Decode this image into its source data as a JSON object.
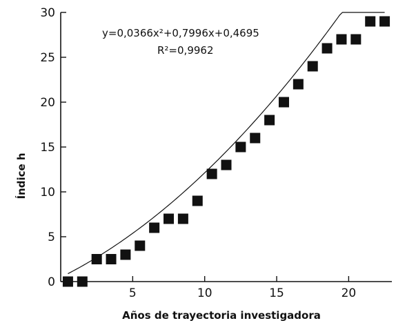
{
  "chart_data": {
    "type": "scatter",
    "xlabel": "Años de trayectoria investigadora",
    "ylabel": "Índice h",
    "xlim": [
      0,
      23
    ],
    "ylim": [
      0,
      30
    ],
    "xticks": [
      5,
      10,
      15,
      20
    ],
    "yticks": [
      0,
      5,
      10,
      15,
      20,
      25,
      30
    ],
    "series": [
      {
        "x": [
          0.5,
          1.5,
          2.5,
          3.5,
          4.5,
          5.5,
          6.5,
          7.5,
          8.5,
          9.5,
          10.5,
          11.5,
          12.5,
          13.5,
          14.5,
          15.5,
          16.5,
          17.5,
          18.5,
          19.5,
          20.5,
          21.5,
          22.5
        ],
        "y": [
          0,
          0,
          2.5,
          2.5,
          3,
          4,
          6,
          7,
          7,
          9,
          12,
          13,
          15,
          16,
          18,
          20,
          22,
          24,
          26,
          27,
          27,
          29,
          29
        ],
        "marker": "square",
        "color": "#111111"
      }
    ],
    "trendline": {
      "type": "polynomial",
      "coefficients": [
        0.0366,
        0.7996,
        0.4695
      ],
      "x_range": [
        0.5,
        22.5
      ]
    },
    "annotations": {
      "equation": "y=0,0366x²+0,7996x+0,4695",
      "r_squared": "R²=0,9962"
    },
    "grid": false,
    "legend": "none"
  }
}
